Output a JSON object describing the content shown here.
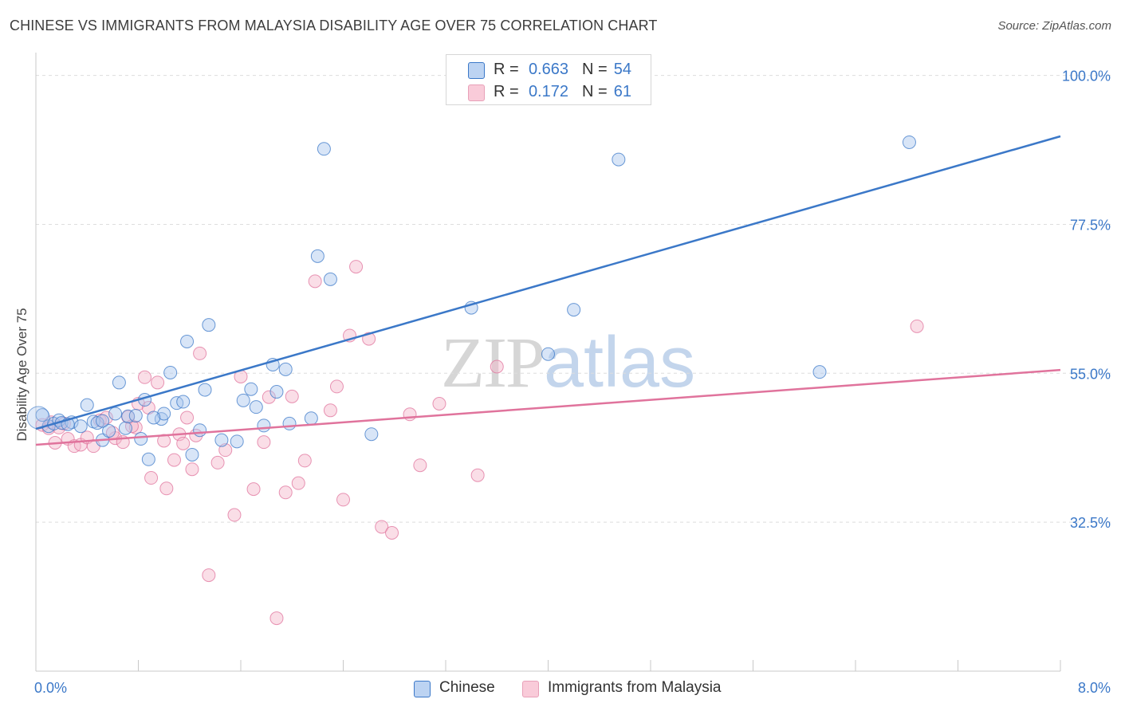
{
  "title": "CHINESE VS IMMIGRANTS FROM MALAYSIA DISABILITY AGE OVER 75 CORRELATION CHART",
  "source": "Source: ZipAtlas.com",
  "watermark": {
    "zip": "ZIP",
    "atlas": "atlas"
  },
  "colors": {
    "chinese": "#3b78c8",
    "chinese_fill": "#a9c6ee",
    "malaysia": "#e0739c",
    "malaysia_fill": "#f5b6ca",
    "grid": "#dddddd",
    "axis": "#c8c8c8",
    "tick_label": "#3b78c8"
  },
  "legend_top": {
    "rows": [
      {
        "r_label": "R =",
        "r_value": "0.663",
        "n_label": "N =",
        "n_value": "54"
      },
      {
        "r_label": "R =",
        "r_value": "0.172",
        "n_label": "N =",
        "n_value": "61"
      }
    ]
  },
  "legend_bottom": {
    "items": [
      "Chinese",
      "Immigrants from Malaysia"
    ]
  },
  "chart_data": {
    "type": "scatter",
    "title": "CHINESE VS IMMIGRANTS FROM MALAYSIA DISABILITY AGE OVER 75 CORRELATION CHART",
    "xlabel": "",
    "ylabel": "Disability Age Over 75",
    "xlim": [
      0,
      8
    ],
    "ylim": [
      10,
      102
    ],
    "x_tick_labels": [
      "0.0%",
      "8.0%"
    ],
    "y_ticks": [
      32.5,
      55.0,
      77.5,
      100.0
    ],
    "y_tick_labels": [
      "32.5%",
      "55.0%",
      "77.5%",
      "100.0%"
    ],
    "grid": true,
    "legend_placement": "top-center",
    "series": [
      {
        "name": "Chinese",
        "r": 0.663,
        "n": 54,
        "trend": [
          [
            0.0,
            46.6
          ],
          [
            8.0,
            90.8
          ]
        ],
        "points": [
          [
            0.05,
            48.7
          ],
          [
            0.1,
            47.0
          ],
          [
            0.14,
            47.4
          ],
          [
            0.18,
            47.9
          ],
          [
            0.2,
            47.5
          ],
          [
            0.28,
            47.6
          ],
          [
            0.35,
            47.0
          ],
          [
            0.4,
            50.2
          ],
          [
            0.45,
            47.7
          ],
          [
            0.48,
            47.5
          ],
          [
            0.52,
            44.9
          ],
          [
            0.57,
            46.3
          ],
          [
            0.62,
            48.9
          ],
          [
            0.65,
            53.6
          ],
          [
            0.7,
            46.7
          ],
          [
            0.72,
            48.5
          ],
          [
            0.78,
            48.6
          ],
          [
            0.82,
            45.1
          ],
          [
            0.85,
            51.0
          ],
          [
            0.88,
            42.0
          ],
          [
            0.98,
            48.1
          ],
          [
            1.0,
            48.9
          ],
          [
            1.05,
            55.1
          ],
          [
            1.1,
            50.5
          ],
          [
            1.15,
            50.7
          ],
          [
            1.18,
            59.8
          ],
          [
            1.22,
            42.7
          ],
          [
            1.28,
            46.4
          ],
          [
            1.32,
            52.5
          ],
          [
            1.35,
            62.3
          ],
          [
            1.45,
            44.9
          ],
          [
            1.57,
            44.7
          ],
          [
            1.62,
            50.9
          ],
          [
            1.68,
            52.6
          ],
          [
            1.72,
            49.9
          ],
          [
            1.78,
            47.1
          ],
          [
            1.85,
            56.3
          ],
          [
            1.88,
            52.2
          ],
          [
            1.95,
            55.6
          ],
          [
            1.98,
            47.4
          ],
          [
            2.15,
            48.2
          ],
          [
            2.2,
            72.7
          ],
          [
            2.25,
            88.9
          ],
          [
            2.3,
            69.2
          ],
          [
            2.62,
            45.8
          ],
          [
            3.4,
            64.9
          ],
          [
            4.0,
            57.9
          ],
          [
            4.2,
            64.6
          ],
          [
            4.55,
            87.3
          ],
          [
            6.12,
            55.2
          ],
          [
            6.82,
            89.9
          ],
          [
            0.52,
            47.8
          ],
          [
            0.25,
            47.3
          ],
          [
            0.92,
            48.3
          ]
        ]
      },
      {
        "name": "Immigrants from Malaysia",
        "r": 0.172,
        "n": 61,
        "trend": [
          [
            0.0,
            44.2
          ],
          [
            8.0,
            55.5
          ]
        ],
        "points": [
          [
            0.05,
            47.2
          ],
          [
            0.1,
            46.7
          ],
          [
            0.12,
            47.6
          ],
          [
            0.18,
            46.8
          ],
          [
            0.22,
            47.4
          ],
          [
            0.25,
            45.1
          ],
          [
            0.3,
            44.0
          ],
          [
            0.35,
            44.2
          ],
          [
            0.4,
            45.3
          ],
          [
            0.45,
            44.0
          ],
          [
            0.5,
            47.9
          ],
          [
            0.55,
            48.3
          ],
          [
            0.62,
            45.2
          ],
          [
            0.68,
            44.6
          ],
          [
            0.72,
            48.4
          ],
          [
            0.78,
            46.8
          ],
          [
            0.8,
            50.4
          ],
          [
            0.85,
            54.4
          ],
          [
            0.88,
            49.8
          ],
          [
            0.9,
            39.2
          ],
          [
            0.95,
            53.6
          ],
          [
            1.0,
            44.8
          ],
          [
            1.02,
            37.6
          ],
          [
            1.08,
            41.9
          ],
          [
            1.12,
            45.8
          ],
          [
            1.15,
            44.4
          ],
          [
            1.18,
            48.3
          ],
          [
            1.22,
            40.5
          ],
          [
            1.28,
            58.0
          ],
          [
            1.35,
            24.5
          ],
          [
            1.42,
            41.5
          ],
          [
            1.48,
            43.4
          ],
          [
            1.55,
            33.6
          ],
          [
            1.6,
            54.5
          ],
          [
            1.7,
            37.5
          ],
          [
            1.78,
            44.6
          ],
          [
            1.82,
            51.4
          ],
          [
            1.88,
            18.0
          ],
          [
            1.95,
            37.0
          ],
          [
            2.0,
            51.5
          ],
          [
            2.05,
            38.4
          ],
          [
            2.1,
            41.8
          ],
          [
            2.18,
            68.9
          ],
          [
            2.3,
            49.4
          ],
          [
            2.35,
            53.0
          ],
          [
            2.4,
            35.9
          ],
          [
            2.45,
            60.7
          ],
          [
            2.5,
            71.1
          ],
          [
            2.6,
            60.2
          ],
          [
            2.7,
            31.8
          ],
          [
            2.78,
            30.9
          ],
          [
            2.92,
            48.8
          ],
          [
            3.0,
            41.1
          ],
          [
            3.15,
            50.4
          ],
          [
            3.45,
            39.6
          ],
          [
            3.6,
            56.0
          ],
          [
            6.88,
            62.1
          ],
          [
            0.15,
            44.5
          ],
          [
            0.6,
            46.0
          ],
          [
            0.75,
            47.0
          ],
          [
            1.25,
            45.6
          ]
        ]
      }
    ]
  }
}
